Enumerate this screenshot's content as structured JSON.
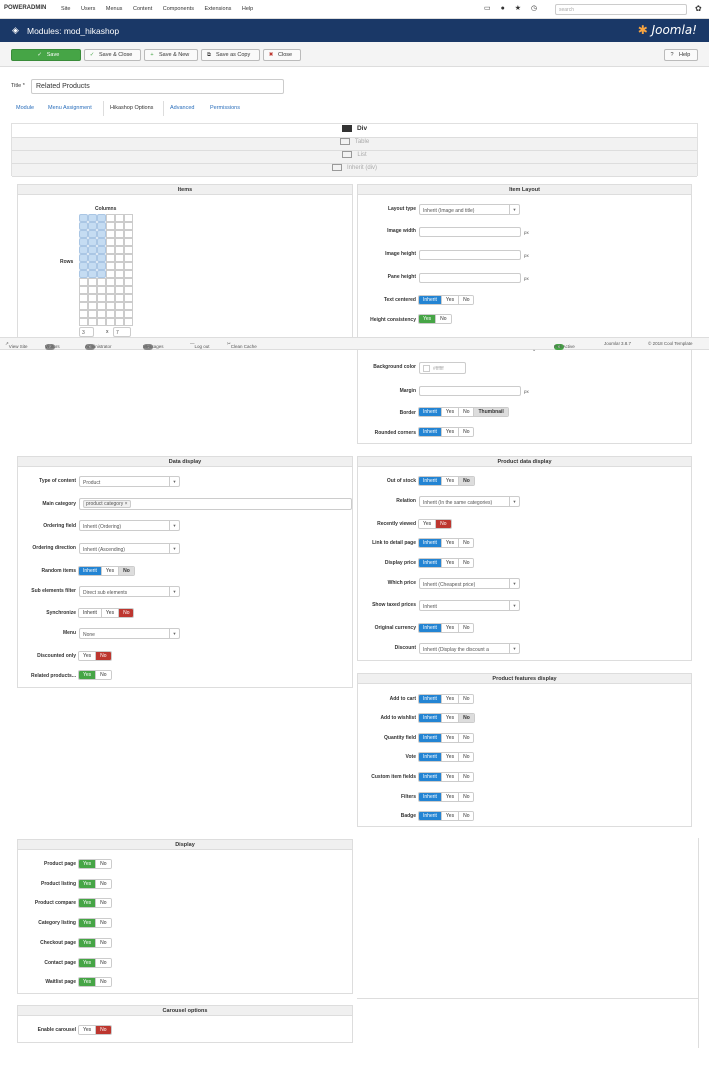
{
  "topbar": {
    "brand": "POWERADMIN",
    "menu": [
      "Site",
      "Users",
      "Menus",
      "Content",
      "Components",
      "Extensions",
      "Help"
    ],
    "search_placeholder": "search"
  },
  "header": {
    "title": "Modules: mod_hikashop",
    "logo": "Joomla!"
  },
  "toolbar": {
    "save": "Save",
    "save_close": "Save & Close",
    "save_new": "Save & New",
    "save_copy": "Save as Copy",
    "close": "Close",
    "help": "Help"
  },
  "title_field": {
    "label": "Title *",
    "value": "Related Products"
  },
  "tabs": [
    "Module",
    "Menu Assignment",
    "Hikashop Options",
    "Advanced",
    "Permissions"
  ],
  "layouts": {
    "div": "Div",
    "table": "Table",
    "list": "List",
    "inherit": "Inherit (div)"
  },
  "items": {
    "header": "Items",
    "columns_label": "Columns",
    "rows_label": "Rows",
    "columns_value": "3",
    "x": "x",
    "rows_value": "7"
  },
  "item_layout": {
    "header": "Item Layout",
    "layout_type_label": "Layout type",
    "layout_type": "Inherit (Image and title)",
    "image_width_label": "Image width",
    "image_height_label": "Image height",
    "pane_height_label": "Pane height",
    "px": "px",
    "text_centered_label": "Text centered",
    "height_consistency_label": "Height consistency",
    "background_color_label": "Background color",
    "background_color": "#ffffff",
    "margin_label": "Margin",
    "border_label": "Border",
    "rounded_corners_label": "Rounded corners"
  },
  "btn": {
    "inherit": "Inherit",
    "yes": "Yes",
    "no": "No",
    "thumbnail": "Thumbnail"
  },
  "statusbar": {
    "view_site": "View Site",
    "visitors_count": "0",
    "visitors": "Visitors",
    "admins_count": "0",
    "administrators": "Administrator",
    "messages_count": "0",
    "messages": "Messages",
    "logout": "Log out",
    "clean_cache": "Clean Cache",
    "poll_count": "0",
    "poll": "Poll Active",
    "version": "Joomla! 3.8.7",
    "copyright": "© 2018 Cool Template"
  },
  "data_display": {
    "header": "Data display",
    "type_label": "Type of content",
    "type": "Product",
    "main_category_label": "Main category",
    "main_category": "product category ×",
    "ordering_field_label": "Ordering field",
    "ordering_field": "Inherit (Ordering)",
    "ordering_direction_label": "Ordering direction",
    "ordering_direction": "Inherit (Ascending)",
    "random_label": "Random items",
    "sub_filter_label": "Sub elements filter",
    "sub_filter": "Direct sub elements",
    "sync_label": "Synchronize",
    "menu_label": "Menu",
    "menu": "None",
    "discounted_label": "Discounted only",
    "related_label": "Related products..."
  },
  "product_data": {
    "header": "Product data display",
    "out_of_stock_label": "Out of stock",
    "relation_label": "Relation",
    "relation": "Inherit (In the same categories)",
    "recently_viewed_label": "Recently viewed",
    "link_detail_label": "Link to detail page",
    "display_price_label": "Display price",
    "which_price_label": "Which price",
    "which_price": "Inherit (Cheapest price)",
    "show_taxed_label": "Show taxed prices",
    "show_taxed": "Inherit",
    "original_currency_label": "Original currency",
    "discount_label": "Discount",
    "discount": "Inherit (Display the discount a"
  },
  "features": {
    "header": "Product features display",
    "add_cart": "Add to cart",
    "add_wishlist": "Add to wishlist",
    "quantity": "Quantity field",
    "vote": "Vote",
    "custom_fields": "Custom item fields",
    "filters": "Filters",
    "badge": "Badge"
  },
  "display": {
    "header": "Display",
    "items": [
      "Product page",
      "Product listing",
      "Product compare",
      "Category listing",
      "Checkout page",
      "Contact page",
      "Waitlist page"
    ]
  },
  "carousel": {
    "header": "Carousel options",
    "enable_label": "Enable carousel"
  }
}
